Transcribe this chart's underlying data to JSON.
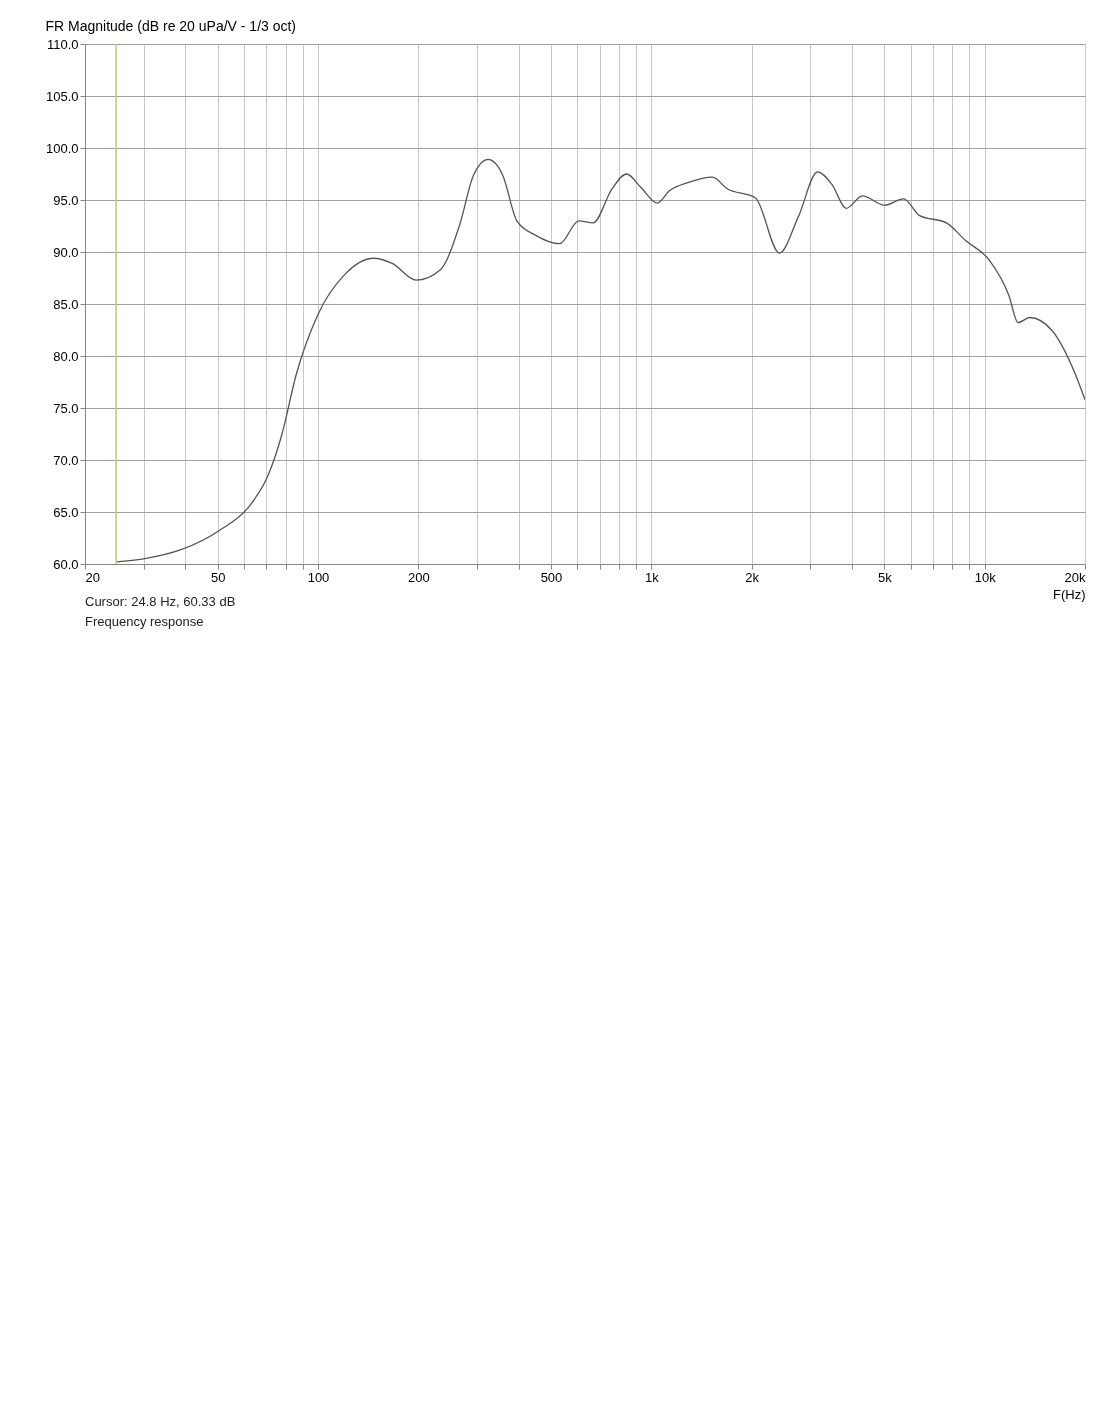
{
  "chart_data": {
    "type": "line",
    "title": "FR Magnitude (dB re 20 uPa/V - 1/3 oct)",
    "xlabel": "F(Hz)",
    "log": "x",
    "grid": true,
    "marker": "none",
    "line_style": "solid",
    "xlim": [
      20,
      20000
    ],
    "xticks": [
      20,
      {
        "value": 30,
        "label": null
      },
      {
        "value": 40,
        "label": null
      },
      50,
      {
        "value": 60,
        "label": null
      },
      {
        "value": 70,
        "label": null
      },
      {
        "value": 80,
        "label": null
      },
      {
        "value": 90,
        "label": null
      },
      100,
      200,
      {
        "value": 300,
        "label": null
      },
      {
        "value": 400,
        "label": null
      },
      500,
      {
        "value": 600,
        "label": null
      },
      {
        "value": 700,
        "label": null
      },
      {
        "value": 800,
        "label": null
      },
      {
        "value": 900,
        "label": null
      },
      {
        "value": 1000,
        "label": "1k"
      },
      {
        "value": 2000,
        "label": "2k"
      },
      {
        "value": 3000,
        "label": null
      },
      {
        "value": 4000,
        "label": null
      },
      {
        "value": 5000,
        "label": "5k"
      },
      {
        "value": 6000,
        "label": null
      },
      {
        "value": 7000,
        "label": null
      },
      {
        "value": 8000,
        "label": null
      },
      {
        "value": 9000,
        "label": null
      },
      {
        "value": 10000,
        "label": "10k"
      },
      {
        "value": 20000,
        "label": "20k"
      }
    ],
    "ylim": [
      60,
      110
    ],
    "yticks": [
      {
        "value": 60,
        "label": "60.0"
      },
      {
        "value": 65,
        "label": "65.0"
      },
      {
        "value": 70,
        "label": "70.0"
      },
      {
        "value": 75,
        "label": "75.0"
      },
      {
        "value": 80,
        "label": "80.0"
      },
      {
        "value": 85,
        "label": "85.0"
      },
      {
        "value": 90,
        "label": "90.0"
      },
      {
        "value": 95,
        "label": "95.0"
      },
      {
        "value": 100,
        "label": "100.0"
      },
      {
        "value": 105,
        "label": "105.0"
      },
      {
        "value": 110,
        "label": "110.0"
      }
    ],
    "x": [
      24.8,
      30,
      39,
      51,
      62,
      71,
      78,
      86,
      100,
      120,
      147,
      167,
      197,
      233,
      266,
      293,
      324,
      358,
      395,
      450,
      531,
      606,
      669,
      763,
      843,
      931,
      1041,
      1134,
      1294,
      1526,
      1685,
      2054,
      2422,
      2762,
      3152,
      3481,
      3843,
      4300,
      5005,
      5709,
      6386,
      7682,
      8768,
      10338,
      11800,
      12605,
      13643,
      15876,
      18736,
      20000
    ],
    "series": [
      {
        "color": "#555555",
        "values": [
          60.2,
          60.5,
          61.4,
          63.3,
          65.5,
          68.6,
          72.5,
          78.2,
          84.0,
          87.8,
          89.4,
          88.9,
          87.3,
          88.3,
          92.6,
          97.4,
          98.9,
          97.4,
          93.0,
          91.6,
          90.8,
          93.0,
          92.8,
          96.1,
          97.5,
          96.2,
          94.7,
          95.9,
          96.7,
          97.2,
          96.1,
          95.2,
          89.9,
          93.4,
          97.7,
          96.5,
          94.2,
          95.4,
          94.5,
          95.1,
          93.5,
          92.8,
          91.1,
          89.2,
          85.9,
          83.2,
          83.7,
          82.5,
          78.2,
          75.8
        ]
      }
    ],
    "ref_lines": [
      {
        "axis": "x",
        "value": 24.8,
        "color": "#c8c864"
      }
    ],
    "annotations": [
      "Cursor: 24.8 Hz, 60.33 dB",
      "Frequency response"
    ]
  }
}
